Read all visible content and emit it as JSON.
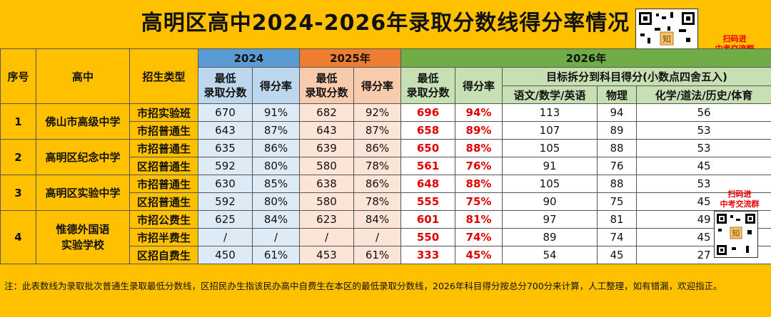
{
  "title": "高明区高中2024-2026年录取分数线得分率情况",
  "qr_caption": "扫码进\n中考交流群",
  "qr_caption2": "扫码进\n中考交流群",
  "header": {
    "seq": "序号",
    "school": "高中",
    "type": "招生类型",
    "y2024": "2024",
    "y2025": "2025年",
    "y2026": "2026年",
    "min_score": "最低\n录取分数",
    "rate": "得分率",
    "split": "目标拆分到科目得分(小数点四舍五入)",
    "sub1": "语文/数学/英语",
    "sub2": "物理",
    "sub3": "化学/道法/历史/体育"
  },
  "rows": [
    {
      "seq": "1",
      "school": "佛山市高级中学",
      "type": "市招实验班",
      "s24": "670",
      "r24": "91%",
      "s25": "682",
      "r25": "92%",
      "s26": "696",
      "r26": "94%",
      "a": "113",
      "b": "94",
      "c": "56"
    },
    {
      "seq": "",
      "school": "",
      "type": "市招普通生",
      "s24": "643",
      "r24": "87%",
      "s25": "643",
      "r25": "87%",
      "s26": "658",
      "r26": "89%",
      "a": "107",
      "b": "89",
      "c": "53"
    },
    {
      "seq": "2",
      "school": "高明区纪念中学",
      "type": "市招普通生",
      "s24": "635",
      "r24": "86%",
      "s25": "639",
      "r25": "86%",
      "s26": "650",
      "r26": "88%",
      "a": "105",
      "b": "88",
      "c": "53"
    },
    {
      "seq": "",
      "school": "",
      "type": "区招普通生",
      "s24": "592",
      "r24": "80%",
      "s25": "580",
      "r25": "78%",
      "s26": "561",
      "r26": "76%",
      "a": "91",
      "b": "76",
      "c": "45"
    },
    {
      "seq": "3",
      "school": "高明区实验中学",
      "type": "市招普通生",
      "s24": "630",
      "r24": "85%",
      "s25": "638",
      "r25": "86%",
      "s26": "648",
      "r26": "88%",
      "a": "105",
      "b": "88",
      "c": "53"
    },
    {
      "seq": "",
      "school": "",
      "type": "区招普通生",
      "s24": "592",
      "r24": "80%",
      "s25": "580",
      "r25": "78%",
      "s26": "555",
      "r26": "75%",
      "a": "90",
      "b": "75",
      "c": "45"
    },
    {
      "seq": "4",
      "school": "惟德外国语\n实验学校",
      "type": "市招公费生",
      "s24": "625",
      "r24": "84%",
      "s25": "623",
      "r25": "84%",
      "s26": "601",
      "r26": "81%",
      "a": "97",
      "b": "81",
      "c": "49"
    },
    {
      "seq": "",
      "school": "",
      "type": "市招半费生",
      "s24": "/",
      "r24": "/",
      "s25": "/",
      "r25": "/",
      "s26": "550",
      "r26": "74%",
      "a": "89",
      "b": "74",
      "c": "45"
    },
    {
      "seq": "",
      "school": "",
      "type": "区招自费生",
      "s24": "450",
      "r24": "61%",
      "s25": "453",
      "r25": "61%",
      "s26": "333",
      "r26": "45%",
      "a": "54",
      "b": "45",
      "c": "27"
    }
  ],
  "note": "注：此表数线为录取批次普通生录取最低分数线，区招民办生指该民办高中自费生在本区的最低录取分数线，2026年科目得分按总分700分来计算，人工整理，如有错漏，欢迎指正。"
}
